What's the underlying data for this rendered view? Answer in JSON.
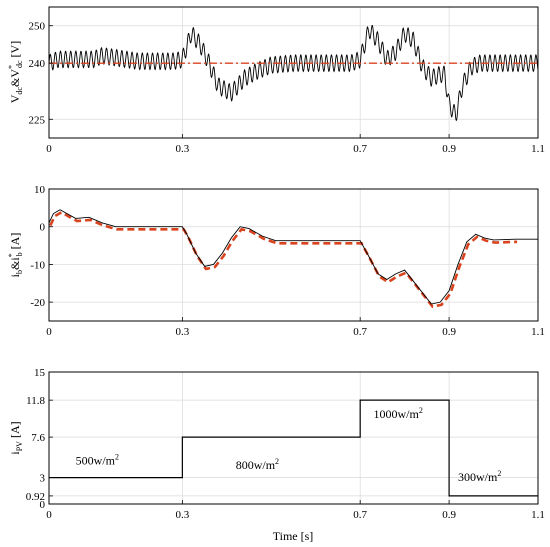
{
  "chart_data": [
    {
      "type": "line",
      "ylabel_base": "V",
      "ylabel_sub1": "dc",
      "ylabel_mid": "&V",
      "ylabel_sup": "*",
      "ylabel_sub2": "dc",
      "ylabel_unit": " [V]",
      "xlim": [
        0,
        1.1
      ],
      "ylim": [
        220,
        255
      ],
      "x_ticks": [
        "0",
        "0.3",
        "0.7",
        "0.9",
        "1.1"
      ],
      "x_tick_values": [
        0,
        0.3,
        0.7,
        0.9,
        1.1
      ],
      "y_ticks": [
        "225",
        "240",
        "250"
      ],
      "y_tick_values": [
        225,
        240,
        250
      ],
      "grid": true,
      "series": [
        {
          "style": "black-solid-ripple",
          "color": "#000000",
          "ripple_amplitude": 2.2,
          "ripple_period": 0.0115,
          "envelope": [
            [
              0,
              240
            ],
            [
              0.02,
              241
            ],
            [
              0.1,
              241
            ],
            [
              0.12,
              242
            ],
            [
              0.2,
              240.5
            ],
            [
              0.28,
              240.5
            ],
            [
              0.3,
              241
            ],
            [
              0.32,
              248
            ],
            [
              0.34,
              245
            ],
            [
              0.36,
              240
            ],
            [
              0.38,
              234
            ],
            [
              0.41,
              232
            ],
            [
              0.44,
              236
            ],
            [
              0.47,
              238
            ],
            [
              0.5,
              239.5
            ],
            [
              0.55,
              240
            ],
            [
              0.6,
              240
            ],
            [
              0.68,
              240
            ],
            [
              0.7,
              241
            ],
            [
              0.72,
              249
            ],
            [
              0.74,
              246
            ],
            [
              0.76,
              241
            ],
            [
              0.78,
              243
            ],
            [
              0.8,
              248
            ],
            [
              0.82,
              246
            ],
            [
              0.84,
              239
            ],
            [
              0.86,
              236
            ],
            [
              0.88,
              237
            ],
            [
              0.89,
              237
            ],
            [
              0.9,
              229
            ],
            [
              0.915,
              226
            ],
            [
              0.93,
              234
            ],
            [
              0.95,
              239
            ],
            [
              0.97,
              240
            ],
            [
              1.0,
              240
            ],
            [
              1.1,
              240
            ]
          ]
        },
        {
          "style": "red-dashed",
          "color": "#d9431e",
          "points": [
            [
              0,
              240
            ],
            [
              1.1,
              240
            ]
          ]
        }
      ]
    },
    {
      "type": "line",
      "ylabel_base": "i",
      "ylabel_sub1": "b",
      "ylabel_mid": "&i",
      "ylabel_sup": "*",
      "ylabel_sub2": "b",
      "ylabel_unit": " [A]",
      "xlim": [
        0,
        1.1
      ],
      "ylim": [
        -25,
        10
      ],
      "x_ticks": [
        "0",
        "0.3",
        "0.7",
        "0.9",
        "1.1"
      ],
      "x_tick_values": [
        0,
        0.3,
        0.7,
        0.9,
        1.1
      ],
      "y_ticks": [
        "10",
        "0",
        "-10",
        "-20"
      ],
      "y_tick_values": [
        10,
        0,
        -10,
        -20
      ],
      "grid": true,
      "series": [
        {
          "style": "black-solid",
          "color": "#000000",
          "points": [
            [
              0,
              1
            ],
            [
              0.01,
              3.5
            ],
            [
              0.025,
              4.5
            ],
            [
              0.04,
              3.5
            ],
            [
              0.06,
              2.2
            ],
            [
              0.09,
              2.5
            ],
            [
              0.12,
              1
            ],
            [
              0.15,
              0
            ],
            [
              0.2,
              0
            ],
            [
              0.25,
              0
            ],
            [
              0.3,
              0
            ],
            [
              0.31,
              -2
            ],
            [
              0.33,
              -7
            ],
            [
              0.35,
              -10.5
            ],
            [
              0.37,
              -10
            ],
            [
              0.39,
              -7
            ],
            [
              0.41,
              -3
            ],
            [
              0.43,
              0
            ],
            [
              0.45,
              -0.5
            ],
            [
              0.48,
              -2.5
            ],
            [
              0.51,
              -3.7
            ],
            [
              0.55,
              -3.7
            ],
            [
              0.6,
              -3.7
            ],
            [
              0.65,
              -3.7
            ],
            [
              0.7,
              -3.7
            ],
            [
              0.72,
              -8
            ],
            [
              0.74,
              -12.5
            ],
            [
              0.76,
              -14
            ],
            [
              0.78,
              -12.5
            ],
            [
              0.8,
              -11.5
            ],
            [
              0.83,
              -16
            ],
            [
              0.86,
              -20.5
            ],
            [
              0.88,
              -20
            ],
            [
              0.9,
              -17
            ],
            [
              0.92,
              -10
            ],
            [
              0.94,
              -4
            ],
            [
              0.96,
              -2
            ],
            [
              0.98,
              -3
            ],
            [
              1.0,
              -3.5
            ],
            [
              1.05,
              -3.3
            ],
            [
              1.1,
              -3.3
            ]
          ]
        },
        {
          "style": "red-dashed",
          "color": "#d9431e",
          "offset_x": 0.003,
          "offset_y": -0.7
        }
      ]
    },
    {
      "type": "line",
      "ylabel_base": "i",
      "ylabel_sub1": "PV",
      "ylabel_unit": " [A]",
      "xlabel": "Time [s]",
      "xlim": [
        0,
        1.1
      ],
      "ylim": [
        0,
        15
      ],
      "x_ticks": [
        "0",
        "0.3",
        "0.7",
        "0.9",
        "1.1"
      ],
      "x_tick_values": [
        0,
        0.3,
        0.7,
        0.9,
        1.1
      ],
      "y_ticks": [
        "0",
        "0.92",
        "3",
        "7.6",
        "11.8",
        "15"
      ],
      "y_tick_values": [
        0,
        0.92,
        3,
        7.6,
        11.8,
        15
      ],
      "grid": true,
      "series": [
        {
          "style": "black-step",
          "color": "#000000",
          "points": [
            [
              0,
              3
            ],
            [
              0.3,
              3
            ],
            [
              0.3,
              7.6
            ],
            [
              0.7,
              7.6
            ],
            [
              0.7,
              11.8
            ],
            [
              0.9,
              11.8
            ],
            [
              0.9,
              0.92
            ],
            [
              1.1,
              0.92
            ]
          ]
        }
      ],
      "annotations": [
        {
          "text": "500w/m",
          "sup": "2",
          "x": 0.06,
          "y": 4.5
        },
        {
          "text": "800w/m",
          "sup": "2",
          "x": 0.42,
          "y": 4.0
        },
        {
          "text": "1000w/m",
          "sup": "2",
          "x": 0.73,
          "y": 9.8
        },
        {
          "text": "300w/m",
          "sup": "2",
          "x": 0.92,
          "y": 2.6
        }
      ]
    }
  ]
}
